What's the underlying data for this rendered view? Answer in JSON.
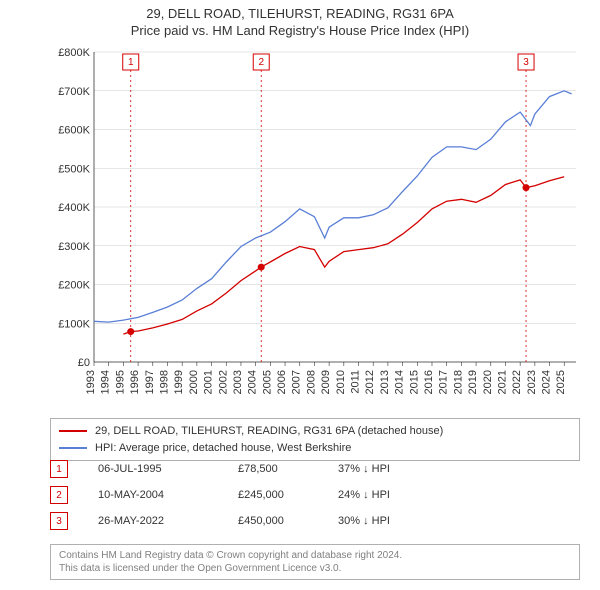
{
  "title": {
    "line1": "29, DELL ROAD, TILEHURST, READING, RG31 6PA",
    "line2": "Price paid vs. HM Land Registry's House Price Index (HPI)"
  },
  "chart": {
    "type": "line",
    "background_color": "#ffffff",
    "grid_color": "#cccccc",
    "axis_color": "#333333",
    "label_fontsize": 11,
    "x": {
      "min": 1993,
      "max": 2025.8,
      "ticks": [
        1993,
        1994,
        1995,
        1996,
        1997,
        1998,
        1999,
        2000,
        2001,
        2002,
        2003,
        2004,
        2005,
        2006,
        2007,
        2008,
        2009,
        2010,
        2011,
        2012,
        2013,
        2014,
        2015,
        2016,
        2017,
        2018,
        2019,
        2020,
        2021,
        2022,
        2023,
        2024,
        2025
      ],
      "tick_rotation": -90
    },
    "y": {
      "min": 0,
      "max": 800000,
      "ticks": [
        0,
        100000,
        200000,
        300000,
        400000,
        500000,
        600000,
        700000,
        800000
      ],
      "tick_labels": [
        "£0",
        "£100K",
        "£200K",
        "£300K",
        "£400K",
        "£500K",
        "£600K",
        "£700K",
        "£800K"
      ]
    },
    "series": [
      {
        "name": "price_paid",
        "color": "#d40000",
        "line_width": 1.3,
        "points": [
          [
            1995.0,
            72000
          ],
          [
            1995.5,
            78500
          ],
          [
            1996,
            80000
          ],
          [
            1997,
            88000
          ],
          [
            1998,
            98000
          ],
          [
            1999,
            110000
          ],
          [
            2000,
            132000
          ],
          [
            2001,
            150000
          ],
          [
            2002,
            178000
          ],
          [
            2003,
            210000
          ],
          [
            2004.0,
            235000
          ],
          [
            2004.38,
            245000
          ],
          [
            2005,
            258000
          ],
          [
            2006,
            280000
          ],
          [
            2007,
            298000
          ],
          [
            2008,
            290000
          ],
          [
            2008.7,
            245000
          ],
          [
            2009,
            260000
          ],
          [
            2010,
            285000
          ],
          [
            2011,
            290000
          ],
          [
            2012,
            295000
          ],
          [
            2013,
            305000
          ],
          [
            2014,
            330000
          ],
          [
            2015,
            360000
          ],
          [
            2016,
            395000
          ],
          [
            2017,
            415000
          ],
          [
            2018,
            420000
          ],
          [
            2019,
            412000
          ],
          [
            2020,
            430000
          ],
          [
            2021,
            458000
          ],
          [
            2022.0,
            470000
          ],
          [
            2022.4,
            450000
          ],
          [
            2023,
            455000
          ],
          [
            2024,
            468000
          ],
          [
            2025,
            478000
          ]
        ]
      },
      {
        "name": "hpi",
        "color": "#5a7fd6",
        "line_width": 1.3,
        "points": [
          [
            1993,
            105000
          ],
          [
            1994,
            103000
          ],
          [
            1995,
            108000
          ],
          [
            1996,
            115000
          ],
          [
            1997,
            128000
          ],
          [
            1998,
            142000
          ],
          [
            1999,
            160000
          ],
          [
            2000,
            190000
          ],
          [
            2001,
            215000
          ],
          [
            2002,
            258000
          ],
          [
            2003,
            298000
          ],
          [
            2004,
            320000
          ],
          [
            2005,
            335000
          ],
          [
            2006,
            362000
          ],
          [
            2007,
            395000
          ],
          [
            2008,
            375000
          ],
          [
            2008.7,
            320000
          ],
          [
            2009,
            348000
          ],
          [
            2010,
            372000
          ],
          [
            2011,
            372000
          ],
          [
            2012,
            380000
          ],
          [
            2013,
            398000
          ],
          [
            2014,
            440000
          ],
          [
            2015,
            480000
          ],
          [
            2016,
            528000
          ],
          [
            2017,
            555000
          ],
          [
            2018,
            555000
          ],
          [
            2019,
            548000
          ],
          [
            2020,
            575000
          ],
          [
            2021,
            620000
          ],
          [
            2022,
            645000
          ],
          [
            2022.7,
            610000
          ],
          [
            2023,
            640000
          ],
          [
            2024,
            685000
          ],
          [
            2025,
            700000
          ],
          [
            2025.5,
            692000
          ]
        ]
      }
    ],
    "sale_markers": [
      {
        "num": "1",
        "x": 1995.5,
        "y": 78500,
        "color": "#d40000"
      },
      {
        "num": "2",
        "x": 2004.38,
        "y": 245000,
        "color": "#d40000"
      },
      {
        "num": "3",
        "x": 2022.4,
        "y": 450000,
        "color": "#d40000"
      }
    ]
  },
  "legend": {
    "items": [
      {
        "color": "#d40000",
        "label": "29, DELL ROAD, TILEHURST, READING, RG31 6PA (detached house)"
      },
      {
        "color": "#5a7fd6",
        "label": "HPI: Average price, detached house, West Berkshire"
      }
    ]
  },
  "markers": [
    {
      "num": "1",
      "color": "#d40000",
      "date": "06-JUL-1995",
      "price": "£78,500",
      "pct": "37% ↓ HPI"
    },
    {
      "num": "2",
      "color": "#d40000",
      "date": "10-MAY-2004",
      "price": "£245,000",
      "pct": "24% ↓ HPI"
    },
    {
      "num": "3",
      "color": "#d40000",
      "date": "26-MAY-2022",
      "price": "£450,000",
      "pct": "30% ↓ HPI"
    }
  ],
  "license": {
    "line1": "Contains HM Land Registry data © Crown copyright and database right 2024.",
    "line2": "This data is licensed under the Open Government Licence v3.0."
  }
}
